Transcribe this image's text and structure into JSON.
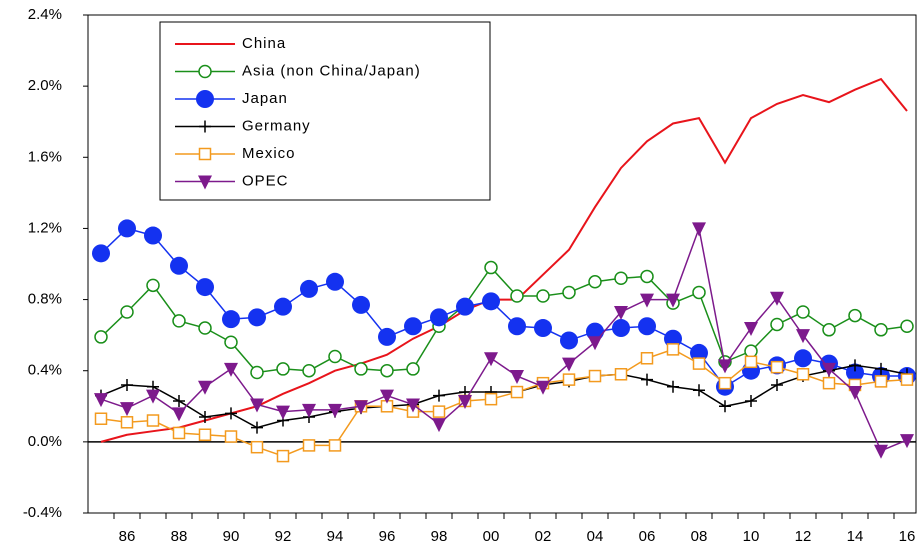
{
  "chart_data": {
    "type": "line",
    "categories": [
      null,
      "86",
      null,
      "88",
      null,
      "90",
      null,
      "92",
      null,
      "94",
      null,
      "96",
      null,
      "98",
      null,
      "00",
      null,
      "02",
      null,
      "04",
      null,
      "06",
      null,
      "08",
      null,
      "10",
      null,
      "12",
      null,
      "14",
      null,
      "16"
    ],
    "series": [
      {
        "name": "China",
        "color": "#e8141b",
        "marker": "none",
        "values": [
          0.0,
          0.04,
          0.06,
          0.08,
          0.12,
          0.16,
          0.2,
          0.27,
          0.33,
          0.4,
          0.44,
          0.49,
          0.58,
          0.65,
          0.74,
          0.8,
          0.8,
          0.94,
          1.08,
          1.32,
          1.54,
          1.69,
          1.79,
          1.82,
          1.57,
          1.82,
          1.9,
          1.95,
          1.91,
          1.98,
          2.04,
          1.86
        ]
      },
      {
        "name": "Asia (non China/Japan)",
        "color": "#1a8f1a",
        "marker": "open-circle",
        "values": [
          0.59,
          0.73,
          0.88,
          0.68,
          0.64,
          0.56,
          0.39,
          0.41,
          0.4,
          0.48,
          0.41,
          0.4,
          0.41,
          0.65,
          0.77,
          0.98,
          0.82,
          0.82,
          0.84,
          0.9,
          0.92,
          0.93,
          0.78,
          0.84,
          0.45,
          0.51,
          0.66,
          0.73,
          0.63,
          0.71,
          0.63,
          0.65
        ]
      },
      {
        "name": "Japan",
        "color": "#1432f0",
        "marker": "filled-circle",
        "values": [
          1.06,
          1.2,
          1.16,
          0.99,
          0.87,
          0.69,
          0.7,
          0.76,
          0.86,
          0.9,
          0.77,
          0.59,
          0.65,
          0.7,
          0.76,
          0.79,
          0.65,
          0.64,
          0.57,
          0.62,
          0.64,
          0.65,
          0.58,
          0.5,
          0.31,
          0.4,
          0.43,
          0.47,
          0.44,
          0.39,
          0.37,
          0.37
        ]
      },
      {
        "name": "Germany",
        "color": "#000000",
        "marker": "plus",
        "values": [
          0.26,
          0.32,
          0.31,
          0.23,
          0.14,
          0.16,
          0.08,
          0.12,
          0.14,
          0.17,
          0.19,
          0.2,
          0.21,
          0.26,
          0.28,
          0.28,
          0.28,
          0.32,
          0.34,
          0.37,
          0.38,
          0.35,
          0.31,
          0.29,
          0.2,
          0.23,
          0.32,
          0.37,
          0.4,
          0.43,
          0.41,
          0.38
        ]
      },
      {
        "name": "Mexico",
        "color": "#f39a1e",
        "marker": "open-square",
        "values": [
          0.13,
          0.11,
          0.12,
          0.05,
          0.04,
          0.03,
          -0.03,
          -0.08,
          -0.02,
          -0.02,
          0.2,
          0.2,
          0.17,
          0.17,
          0.23,
          0.24,
          0.28,
          0.33,
          0.35,
          0.37,
          0.38,
          0.47,
          0.52,
          0.44,
          0.33,
          0.45,
          0.42,
          0.38,
          0.33,
          0.32,
          0.34,
          0.35
        ]
      },
      {
        "name": "OPEC",
        "color": "#7d1a8c",
        "marker": "down-triangle",
        "values": [
          0.24,
          0.19,
          0.26,
          0.16,
          0.31,
          0.41,
          0.21,
          0.17,
          0.18,
          0.18,
          0.2,
          0.26,
          0.21,
          0.1,
          0.23,
          0.47,
          0.37,
          0.31,
          0.44,
          0.56,
          0.73,
          0.8,
          0.8,
          1.2,
          0.43,
          0.64,
          0.81,
          0.6,
          0.41,
          0.28,
          -0.05,
          0.01
        ]
      }
    ],
    "ylim": [
      -0.4,
      2.4
    ],
    "yticks": [
      {
        "value": -0.4,
        "label": "-0.4%"
      },
      {
        "value": 0,
        "label": "0.0%"
      },
      {
        "value": 0.4,
        "label": "0.4%"
      },
      {
        "value": 0.8,
        "label": "0.8%"
      },
      {
        "value": 1.2,
        "label": "1.2%"
      },
      {
        "value": 1.6,
        "label": "1.6%"
      },
      {
        "value": 2.0,
        "label": "2.0%"
      },
      {
        "value": 2.4,
        "label": "2.4%"
      }
    ],
    "zero_line": true,
    "legend": "top-left"
  }
}
